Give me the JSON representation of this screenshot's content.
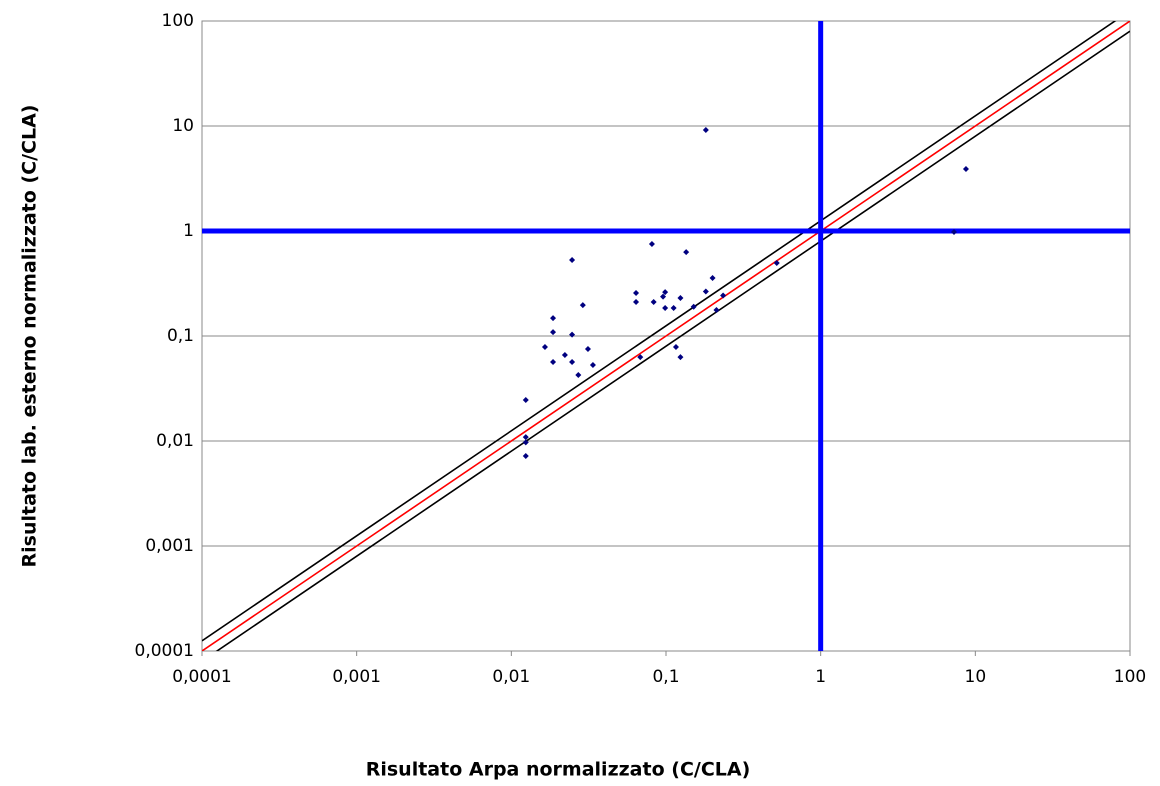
{
  "chart_data": {
    "type": "scatter",
    "x_label": "Risultato Arpa normalizzato (C/CLA)",
    "y_label": "Risultato lab. esterno normalizzato (C/CLA)",
    "log_x": true,
    "log_y": true,
    "grid": true,
    "xlim": [
      0.0001,
      100
    ],
    "ylim": [
      0.0001,
      100
    ],
    "xticks": [
      {
        "value": 0.0001,
        "label": "0,0001"
      },
      {
        "value": 0.001,
        "label": "0,001"
      },
      {
        "value": 0.01,
        "label": "0,01"
      },
      {
        "value": 0.1,
        "label": "0,1"
      },
      1,
      10,
      100
    ],
    "yticks": [
      {
        "value": 0.0001,
        "label": "0,0001"
      },
      {
        "value": 0.001,
        "label": "0,001"
      },
      {
        "value": 0.01,
        "label": "0,01"
      },
      {
        "value": 0.1,
        "label": "0,1"
      },
      1,
      10,
      100
    ],
    "reference_lines": [
      {
        "factor": 1,
        "color": "#ff0000"
      },
      {
        "factor": 1.25,
        "color": "#000000"
      },
      {
        "factor": 0.8,
        "color": "#000000"
      }
    ],
    "vlines": [
      {
        "value": 1,
        "color": "#0000ff"
      }
    ],
    "hlines": [
      {
        "value": 1,
        "color": "#0000ff"
      }
    ],
    "series": [
      {
        "color": "#000080",
        "x": [
          0.0124,
          0.0124,
          0.0124,
          0.0124,
          0.0165,
          0.0186,
          0.0186,
          0.0186,
          0.0222,
          0.0247,
          0.0247,
          0.0247,
          0.0271,
          0.029,
          0.0313,
          0.0337,
          0.064,
          0.064,
          0.0682,
          0.0811,
          0.0832,
          0.0957,
          0.0987,
          0.0987,
          0.112,
          0.116,
          0.124,
          0.124,
          0.135,
          0.151,
          0.181,
          0.181,
          0.2,
          0.212,
          0.234,
          0.52,
          7.28,
          8.7
        ],
        "values": [
          0.0246,
          0.0109,
          0.0097,
          0.0072,
          0.0785,
          0.148,
          0.109,
          0.0565,
          0.0659,
          0.53,
          0.103,
          0.0565,
          0.0425,
          0.197,
          0.0752,
          0.053,
          0.257,
          0.211,
          0.063,
          0.752,
          0.211,
          0.237,
          0.262,
          0.185,
          0.185,
          0.0785,
          0.23,
          0.063,
          0.63,
          0.19,
          9.17,
          0.265,
          0.357,
          0.177,
          0.243,
          0.496,
          0.977,
          3.89
        ]
      }
    ]
  }
}
